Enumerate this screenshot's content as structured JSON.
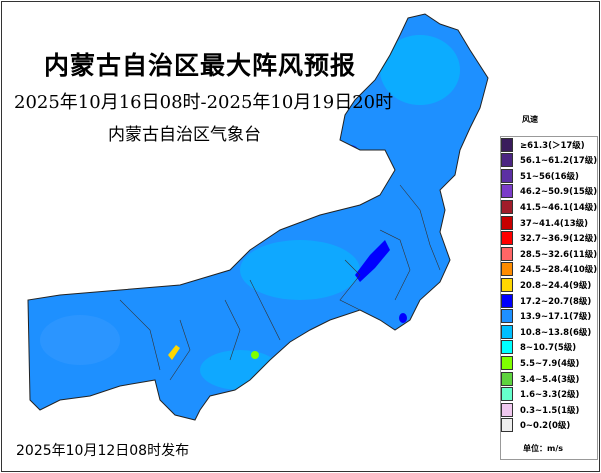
{
  "title": "内蒙古自治区最大阵风预报",
  "period": "2025年10月16日08时-2025年10月19日20时",
  "issuer": "内蒙古自治区气象台",
  "published": "2025年10月12日08时发布",
  "legend": {
    "title": "风速",
    "unit": "单位：m/s",
    "items": [
      {
        "label": "≥61.3(＞17级)",
        "color": "#3a1c5c"
      },
      {
        "label": "56.1~61.2(17级)",
        "color": "#4b2582"
      },
      {
        "label": "51~56(16级)",
        "color": "#5c30a3"
      },
      {
        "label": "46.2~50.9(15级)",
        "color": "#7b3cc9"
      },
      {
        "label": "41.5~46.1(14级)",
        "color": "#a11d2a"
      },
      {
        "label": "37~41.4(13级)",
        "color": "#c80000"
      },
      {
        "label": "32.7~36.9(12级)",
        "color": "#ff0000"
      },
      {
        "label": "28.5~32.6(11级)",
        "color": "#ff6666"
      },
      {
        "label": "24.5~28.4(10级)",
        "color": "#ff8c00"
      },
      {
        "label": "20.8~24.4(9级)",
        "color": "#ffd700"
      },
      {
        "label": "17.2~20.7(8级)",
        "color": "#0000ff"
      },
      {
        "label": "13.9~17.1(7级)",
        "color": "#1e90ff"
      },
      {
        "label": "10.8~13.8(6级)",
        "color": "#00bfff"
      },
      {
        "label": "8~10.7(5级)",
        "color": "#00ffff"
      },
      {
        "label": "5.5~7.9(4级)",
        "color": "#7fff00"
      },
      {
        "label": "3.4~5.4(3级)",
        "color": "#5ed33f"
      },
      {
        "label": "1.6~3.3(2级)",
        "color": "#66ffcc"
      },
      {
        "label": "0.3~1.5(1级)",
        "color": "#f0c8ef"
      },
      {
        "label": "0~0.2(0级)",
        "color": "#eeeeee"
      }
    ]
  }
}
